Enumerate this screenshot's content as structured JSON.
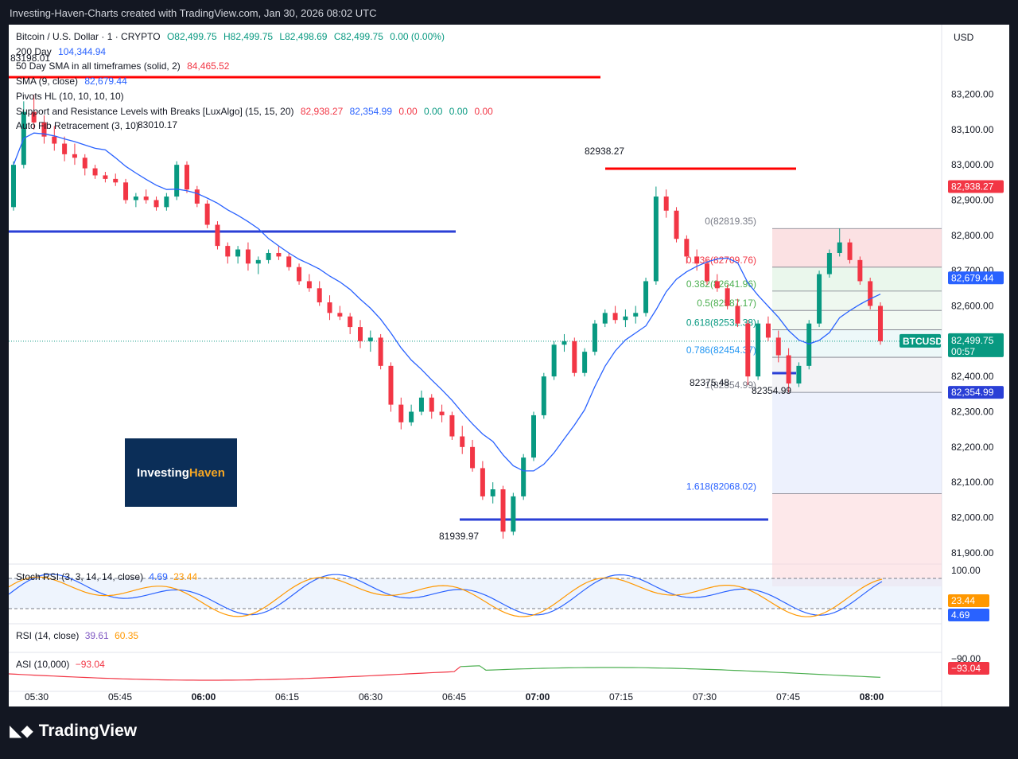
{
  "header": {
    "title": "Investing-Haven-Charts created with TradingView.com, Jan 30, 2026 08:02 UTC"
  },
  "symbol_line": {
    "name": "Bitcoin / U.S. Dollar · 1 · CRYPTO",
    "open": "O82,499.75",
    "high": "H82,499.75",
    "low": "L82,498.69",
    "close": "C82,499.75",
    "change": "0.00 (0.00%)"
  },
  "indicators": [
    {
      "name": "200 Day",
      "value": "104,344.94"
    },
    {
      "name": "50 Day SMA in all timeframes (solid, 2)",
      "value": "84,465.52"
    },
    {
      "name": "SMA (9, close)",
      "value": "82,679.44"
    },
    {
      "name": "Pivots HL (10, 10, 10, 10)",
      "value": ""
    },
    {
      "name": "Support and Resistance Levels with Breaks [LuxAlgo] (15, 15, 20)",
      "values": [
        "82,938.27",
        "82,354.99",
        "0.00",
        "0.00",
        "0.00",
        "0.00"
      ]
    },
    {
      "name": "Auto Fib Retracement (3, 10)",
      "value": ""
    }
  ],
  "price_axis": {
    "currency": "USD",
    "ticks": [
      "83,200.00",
      "83,100.00",
      "83,000.00",
      "82,900.00",
      "82,800.00",
      "82,700.00",
      "82,600.00",
      "82,400.00",
      "82,300.00",
      "82,200.00",
      "82,100.00",
      "82,000.00",
      "81,900.00"
    ],
    "tag_resistance": "82,938.27",
    "tag_sma": "82,679.44",
    "tag_last": "82,499.75",
    "tag_countdown": "00:57",
    "tag_support": "82,354.99",
    "symbol_badge": "BTCUSD"
  },
  "time_axis": [
    "05:30",
    "05:45",
    "06:00",
    "06:15",
    "06:30",
    "06:45",
    "07:00",
    "07:15",
    "07:30",
    "07:45",
    "08:00"
  ],
  "annotations": {
    "top_left_high": "83198.01",
    "pivot_high_1": "83010.17",
    "pivot_high_2": "82938.27",
    "pivot_low_1": "81939.97",
    "pivot_low_2": "82375.48",
    "pivot_low_3": "82354.99"
  },
  "fib_levels": [
    {
      "label": "0(82819.35)",
      "price": 82819.35
    },
    {
      "label": "0.236(82709.76)",
      "price": 82709.76
    },
    {
      "label": "0.382(82641.96)",
      "price": 82641.96
    },
    {
      "label": "0.5(82587.17)",
      "price": 82587.17
    },
    {
      "label": "0.618(82532.38)",
      "price": 82532.38
    },
    {
      "label": "0.786(82454.37)",
      "price": 82454.37
    },
    {
      "label": "1(82354.99)",
      "price": 82354.99
    },
    {
      "label": "1.618(82068.02)",
      "price": 82068.02
    }
  ],
  "logo": {
    "part1": "Investing",
    "part2": "Haven"
  },
  "stoch_rsi": {
    "title": "Stoch RSI (3, 3, 14, 14, close)",
    "k_value": "4.69",
    "d_value": "23.44",
    "axis_top": "100.00"
  },
  "rsi": {
    "title": "RSI (14, close)",
    "value1": "39.61",
    "value2": "60.35"
  },
  "asi": {
    "title": "ASI (10,000)",
    "value": "−93.04",
    "axis_label": "−90.00",
    "tag": "−93.04"
  },
  "footer": {
    "brand": "TradingView"
  },
  "colors": {
    "up": "#089981",
    "down": "#f23645",
    "sma": "#2962ff",
    "resistance": "#ff0000",
    "support": "#2a3fd6"
  },
  "chart_data": {
    "type": "candlestick",
    "title": "Bitcoin / U.S. Dollar · 1 · CRYPTO",
    "ylim": [
      81850,
      83280
    ],
    "x_range": [
      "05:27",
      "08:04"
    ],
    "bars_ohlc": [
      [
        82880,
        83010,
        82870,
        83000
      ],
      [
        83000,
        83180,
        82990,
        83150
      ],
      [
        83150,
        83198,
        83100,
        83120
      ],
      [
        83120,
        83140,
        83060,
        83080
      ],
      [
        83080,
        83110,
        83040,
        83060
      ],
      [
        83060,
        83080,
        83010,
        83030
      ],
      [
        83030,
        83060,
        83000,
        83020
      ],
      [
        83020,
        83030,
        82970,
        82990
      ],
      [
        82990,
        83000,
        82960,
        82970
      ],
      [
        82970,
        82980,
        82950,
        82960
      ],
      [
        82960,
        82975,
        82940,
        82950
      ],
      [
        82950,
        82960,
        82890,
        82900
      ],
      [
        82900,
        82920,
        82880,
        82910
      ],
      [
        82910,
        82930,
        82890,
        82900
      ],
      [
        82900,
        82910,
        82870,
        82880
      ],
      [
        82880,
        82920,
        82870,
        82910
      ],
      [
        82910,
        83010,
        82900,
        83000
      ],
      [
        83000,
        83010,
        82920,
        82930
      ],
      [
        82930,
        82940,
        82880,
        82890
      ],
      [
        82890,
        82900,
        82820,
        82830
      ],
      [
        82830,
        82840,
        82760,
        82770
      ],
      [
        82770,
        82780,
        82720,
        82740
      ],
      [
        82740,
        82770,
        82720,
        82760
      ],
      [
        82760,
        82780,
        82700,
        82720
      ],
      [
        82720,
        82740,
        82690,
        82730
      ],
      [
        82730,
        82760,
        82720,
        82750
      ],
      [
        82750,
        82770,
        82730,
        82740
      ],
      [
        82740,
        82750,
        82700,
        82710
      ],
      [
        82710,
        82720,
        82660,
        82670
      ],
      [
        82670,
        82690,
        82640,
        82650
      ],
      [
        82650,
        82670,
        82600,
        82610
      ],
      [
        82610,
        82630,
        82560,
        82580
      ],
      [
        82580,
        82600,
        82560,
        82570
      ],
      [
        82570,
        82580,
        82520,
        82540
      ],
      [
        82540,
        82560,
        82480,
        82500
      ],
      [
        82500,
        82530,
        82470,
        82510
      ],
      [
        82510,
        82520,
        82420,
        82430
      ],
      [
        82430,
        82440,
        82300,
        82320
      ],
      [
        82320,
        82340,
        82250,
        82270
      ],
      [
        82270,
        82320,
        82260,
        82300
      ],
      [
        82300,
        82360,
        82290,
        82340
      ],
      [
        82340,
        82350,
        82280,
        82300
      ],
      [
        82300,
        82320,
        82270,
        82290
      ],
      [
        82290,
        82300,
        82220,
        82230
      ],
      [
        82230,
        82260,
        82180,
        82200
      ],
      [
        82200,
        82220,
        82130,
        82140
      ],
      [
        82140,
        82160,
        82050,
        82060
      ],
      [
        82060,
        82100,
        82040,
        82080
      ],
      [
        82080,
        82090,
        81939.97,
        81960
      ],
      [
        81960,
        82070,
        81950,
        82060
      ],
      [
        82060,
        82180,
        82050,
        82170
      ],
      [
        82170,
        82300,
        82160,
        82290
      ],
      [
        82290,
        82410,
        82280,
        82400
      ],
      [
        82400,
        82500,
        82390,
        82490
      ],
      [
        82490,
        82520,
        82470,
        82500
      ],
      [
        82500,
        82510,
        82400,
        82410
      ],
      [
        82410,
        82480,
        82400,
        82470
      ],
      [
        82470,
        82560,
        82460,
        82550
      ],
      [
        82550,
        82590,
        82540,
        82580
      ],
      [
        82580,
        82600,
        82550,
        82560
      ],
      [
        82560,
        82590,
        82540,
        82570
      ],
      [
        82570,
        82600,
        82550,
        82580
      ],
      [
        82580,
        82680,
        82570,
        82670
      ],
      [
        82670,
        82938.27,
        82660,
        82910
      ],
      [
        82910,
        82930,
        82850,
        82870
      ],
      [
        82870,
        82880,
        82780,
        82790
      ],
      [
        82790,
        82800,
        82720,
        82740
      ],
      [
        82740,
        82760,
        82700,
        82720
      ],
      [
        82720,
        82730,
        82660,
        82670
      ],
      [
        82670,
        82690,
        82640,
        82650
      ],
      [
        82650,
        82660,
        82590,
        82600
      ],
      [
        82600,
        82620,
        82540,
        82550
      ],
      [
        82550,
        82560,
        82375.48,
        82400
      ],
      [
        82400,
        82560,
        82390,
        82550
      ],
      [
        82550,
        82570,
        82500,
        82510
      ],
      [
        82510,
        82530,
        82440,
        82460
      ],
      [
        82460,
        82480,
        82354.99,
        82380
      ],
      [
        82380,
        82440,
        82370,
        82430
      ],
      [
        82430,
        82560,
        82420,
        82550
      ],
      [
        82550,
        82700,
        82540,
        82690
      ],
      [
        82690,
        82760,
        82680,
        82750
      ],
      [
        82750,
        82819.35,
        82740,
        82780
      ],
      [
        82780,
        82790,
        82720,
        82730
      ],
      [
        82730,
        82740,
        82660,
        82670
      ],
      [
        82670,
        82680,
        82590,
        82600
      ],
      [
        82600,
        82610,
        82490,
        82499.75
      ]
    ]
  }
}
